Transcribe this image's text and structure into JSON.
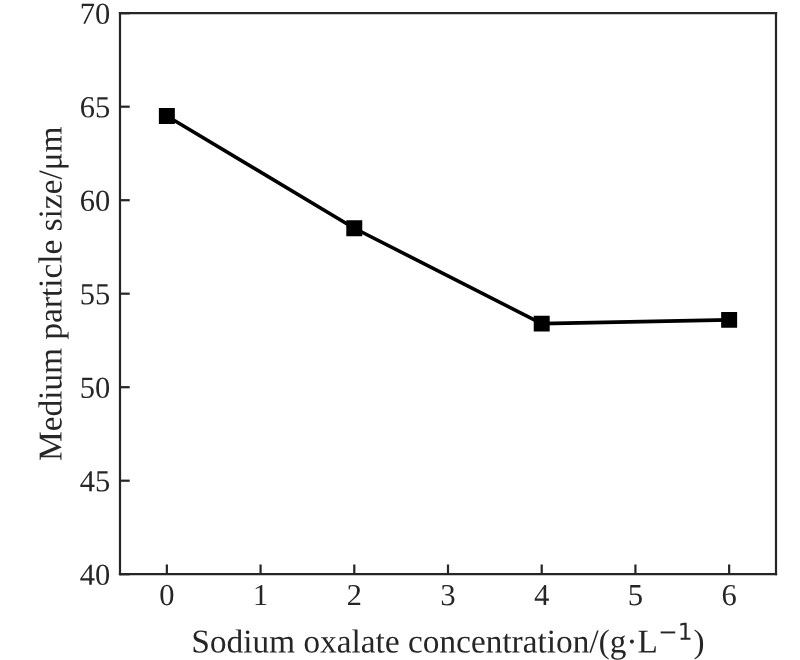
{
  "chart_data": {
    "type": "line",
    "xlabel": "Sodium oxalate concentration/(g·L$^{−1}$)",
    "ylabel": "Medium particle size/μm",
    "x": [
      0,
      2,
      4,
      6
    ],
    "series": [
      {
        "color": "#000000",
        "values": [
          64.5,
          58.5,
          53.4,
          53.6
        ]
      }
    ],
    "xlim": [
      -0.5,
      6.5
    ],
    "xticks": [
      0,
      1,
      2,
      3,
      4,
      5,
      6
    ],
    "ylim": [
      40,
      70
    ],
    "yticks": [
      40,
      45,
      50,
      55,
      60,
      65,
      70
    ],
    "marker": "square",
    "line_style": "solid",
    "grid": false,
    "legend": false
  }
}
